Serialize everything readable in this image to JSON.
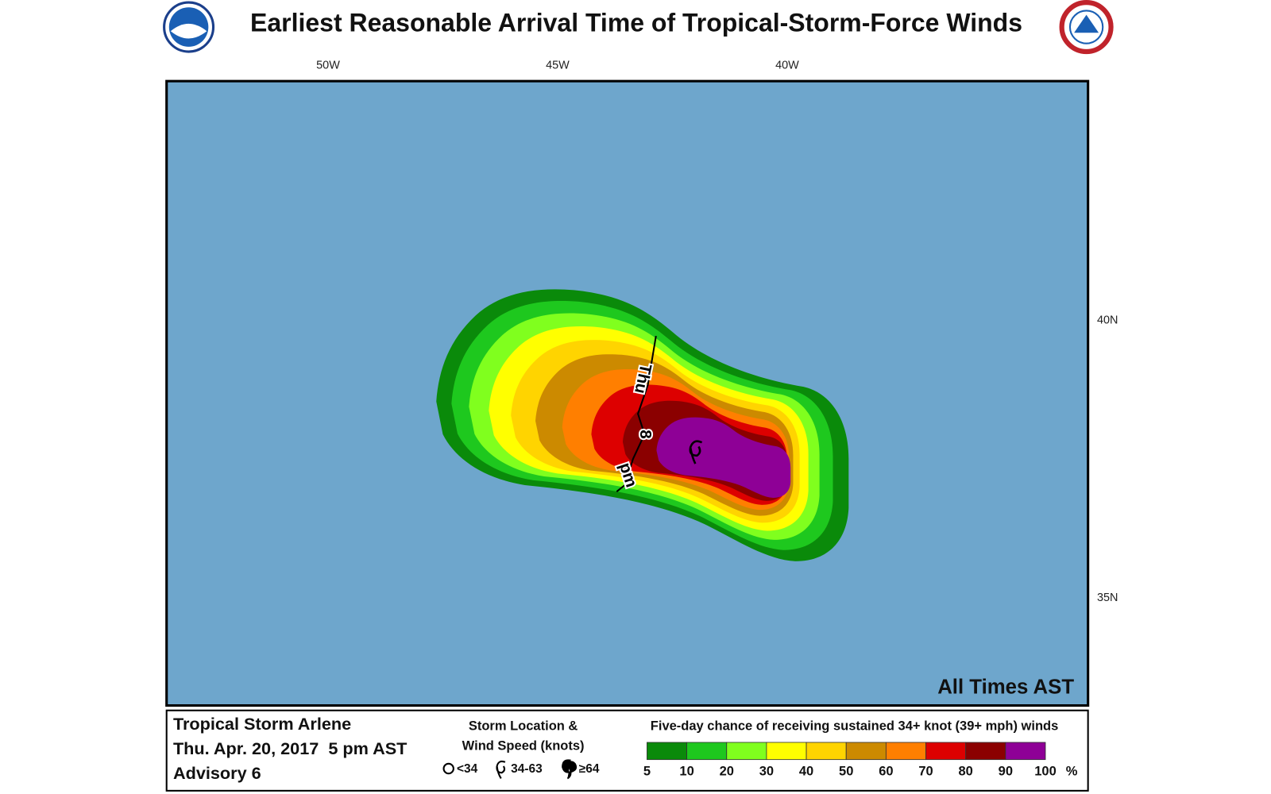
{
  "title": "Earliest Reasonable Arrival Time of Tropical-Storm-Force Winds",
  "map": {
    "x_labels": [
      "50W",
      "45W",
      "40W"
    ],
    "y_labels": [
      "40N",
      "35N"
    ],
    "track_label": [
      "Thu",
      "8",
      "pm"
    ],
    "note": "All Times AST"
  },
  "footer": {
    "storm": [
      "Tropical Storm Arlene",
      "Thu. Apr. 20, 2017  5 pm AST",
      "Advisory 6"
    ],
    "storm_legend": {
      "title": [
        "Storm Location &",
        "Wind Speed (knots)"
      ],
      "items": [
        "<34",
        "34-63",
        "≥64"
      ]
    },
    "colorbar": {
      "title": "Five-day chance of receiving sustained 34+ knot (39+ mph) winds",
      "ticks": [
        5,
        10,
        20,
        30,
        40,
        50,
        60,
        70,
        80,
        90,
        100
      ],
      "unit": "%",
      "colors": [
        "#0a8a0a",
        "#1ec81e",
        "#80ff1e",
        "#ffff00",
        "#ffd400",
        "#cc8a00",
        "#ff7f00",
        "#dd0000",
        "#8b0000",
        "#8e0096"
      ]
    }
  }
}
